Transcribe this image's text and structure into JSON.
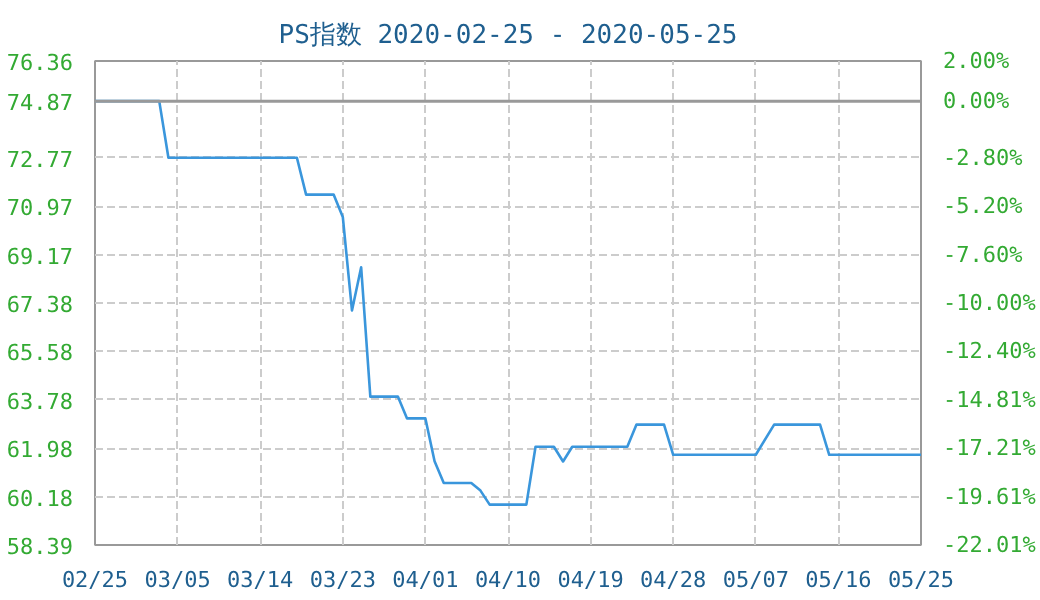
{
  "chart_data": {
    "type": "line",
    "title": "PS指数 2020-02-25 - 2020-05-25",
    "x": [
      "2020-02-25",
      "2020-03-03",
      "2020-03-04",
      "2020-03-18",
      "2020-03-19",
      "2020-03-22",
      "2020-03-23",
      "2020-03-24",
      "2020-03-25",
      "2020-03-26",
      "2020-03-29",
      "2020-03-30",
      "2020-04-01",
      "2020-04-02",
      "2020-04-03",
      "2020-04-06",
      "2020-04-07",
      "2020-04-08",
      "2020-04-12",
      "2020-04-13",
      "2020-04-15",
      "2020-04-16",
      "2020-04-17",
      "2020-04-23",
      "2020-04-24",
      "2020-04-27",
      "2020-04-28",
      "2020-05-07",
      "2020-05-09",
      "2020-05-14",
      "2020-05-15",
      "2020-05-25"
    ],
    "series": [
      {
        "color": "#3a96dc",
        "values": [
          74.87,
          74.87,
          72.77,
          72.77,
          71.4,
          71.4,
          70.57,
          67.1,
          68.7,
          63.9,
          63.9,
          63.09,
          63.09,
          61.5,
          60.69,
          60.69,
          60.41,
          59.89,
          59.89,
          62.04,
          62.04,
          61.49,
          62.04,
          62.04,
          62.86,
          62.86,
          61.74,
          61.74,
          62.86,
          62.86,
          61.74,
          61.74
        ]
      }
    ],
    "xlim": [
      "2020-02-25",
      "2020-05-25"
    ],
    "xticks": [
      {
        "value": "2020-02-25",
        "label": "02/25"
      },
      {
        "value": "2020-03-05",
        "label": "03/05"
      },
      {
        "value": "2020-03-14",
        "label": "03/14"
      },
      {
        "value": "2020-03-23",
        "label": "03/23"
      },
      {
        "value": "2020-04-01",
        "label": "04/01"
      },
      {
        "value": "2020-04-10",
        "label": "04/10"
      },
      {
        "value": "2020-04-19",
        "label": "04/19"
      },
      {
        "value": "2020-04-28",
        "label": "04/28"
      },
      {
        "value": "2020-05-07",
        "label": "05/07"
      },
      {
        "value": "2020-05-16",
        "label": "05/16"
      },
      {
        "value": "2020-05-25",
        "label": "05/25"
      }
    ],
    "ylim": [
      58.39,
      76.36
    ],
    "yticks": [
      58.39,
      60.18,
      61.98,
      63.78,
      65.58,
      67.38,
      69.17,
      70.97,
      72.77,
      74.87,
      76.36
    ],
    "y2lim": [
      -22.01,
      2.0
    ],
    "y2ticks": [
      {
        "value": -22.01,
        "label": "-22.01%"
      },
      {
        "value": -19.61,
        "label": "-19.61%"
      },
      {
        "value": -17.21,
        "label": "-17.21%"
      },
      {
        "value": -14.81,
        "label": "-14.81%"
      },
      {
        "value": -12.4,
        "label": "-12.40%"
      },
      {
        "value": -10.0,
        "label": "-10.00%"
      },
      {
        "value": -7.6,
        "label": "-7.60%"
      },
      {
        "value": -5.2,
        "label": "-5.20%"
      },
      {
        "value": -2.8,
        "label": "-2.80%"
      },
      {
        "value": 0.0,
        "label": "0.00%"
      },
      {
        "value": 2.0,
        "label": "2.00%"
      }
    ],
    "ref_lines": [
      {
        "axis": "y",
        "value": 74.87,
        "color": "#999999"
      }
    ],
    "grid": true,
    "marker": "none",
    "line_style": "solid"
  }
}
